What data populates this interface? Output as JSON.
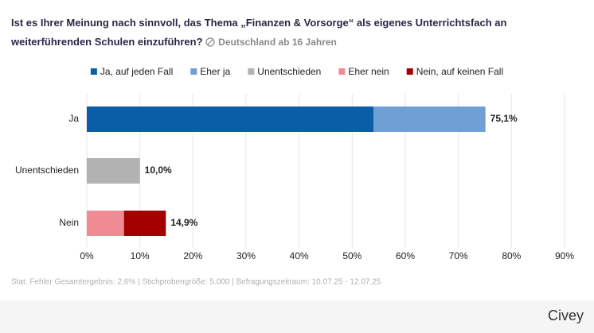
{
  "chart_data": {
    "type": "stacked-bar-horizontal",
    "title": "Ist es Ihrer Meinung nach sinnvoll, das Thema „Finanzen & Vorsorge“ als eigenes Unterrichtsfach an weiterführenden Schulen einzuführen?",
    "subtitle": "Deutschland ab 16 Jahren",
    "categories": [
      "Ja",
      "Unentschieden",
      "Nein"
    ],
    "series": [
      {
        "name": "Ja, auf jeden Fall",
        "color": "#0a5ea8",
        "values": [
          54,
          null,
          null
        ]
      },
      {
        "name": "Eher ja",
        "color": "#6ea0d6",
        "values": [
          21.1,
          null,
          null
        ]
      },
      {
        "name": "Unentschieden",
        "color": "#b2b2b2",
        "values": [
          null,
          10.0,
          null
        ]
      },
      {
        "name": "Eher nein",
        "color": "#ef8c93",
        "values": [
          null,
          null,
          7.0
        ]
      },
      {
        "name": "Nein, auf keinen Fall",
        "color": "#a50000",
        "values": [
          null,
          null,
          7.9
        ]
      }
    ],
    "totals": [
      75.1,
      10.0,
      14.9
    ],
    "total_labels": [
      "75,1%",
      "10,0%",
      "14,9%"
    ],
    "xlim": [
      0,
      90
    ],
    "xticks": [
      {
        "value": 0,
        "label": "0%"
      },
      {
        "value": 10,
        "label": "10%"
      },
      {
        "value": 20,
        "label": "20%"
      },
      {
        "value": 30,
        "label": "30%"
      },
      {
        "value": 40,
        "label": "40%"
      },
      {
        "value": 50,
        "label": "50%"
      },
      {
        "value": 60,
        "label": "60%"
      },
      {
        "value": 70,
        "label": "70%"
      },
      {
        "value": 80,
        "label": "80%"
      },
      {
        "value": 90,
        "label": "90%"
      }
    ],
    "grid": true,
    "note": "Stat. Fehler Gesamtergebnis: 2,6% | Stichprobengröße: 5.000 | Befragungszeitraum: 10.07.25 - 12.07.25",
    "brand": "Civey"
  }
}
